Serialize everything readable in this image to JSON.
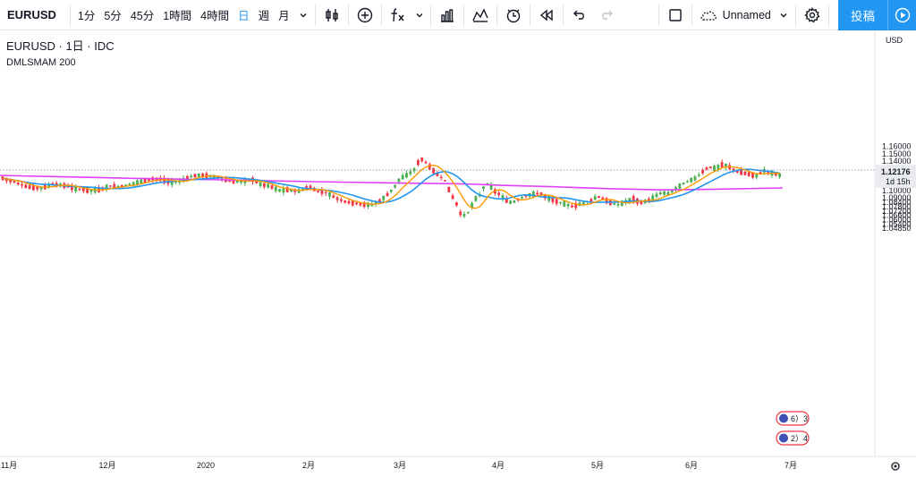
{
  "toolbar": {
    "symbol": "EURUSD",
    "intervals": [
      "1分",
      "5分",
      "45分",
      "1時間",
      "4時間",
      "日",
      "週",
      "月"
    ],
    "active_interval": "日",
    "layout_name": "Unnamed",
    "publish_label": "投稿",
    "accent_color": "#2196f3"
  },
  "legend": {
    "title": "EURUSD · 1日 · IDC",
    "indicator": "DMLSMAM 200"
  },
  "chart_data": {
    "type": "candlestick",
    "currency_label": "USD",
    "y_ticks": [
      "1.16000",
      "1.15000",
      "1.14000",
      "1.13000",
      "1.12176",
      "1.11000",
      "1.10000",
      "1.09000",
      "1.08400",
      "1.07800",
      "1.07200",
      "1.06600",
      "1.06000",
      "1.05400",
      "1.04850"
    ],
    "last_price": "1.12176",
    "countdown": "1d 15h",
    "x_labels": [
      "11月",
      "12月",
      "2020",
      "2月",
      "3月",
      "4月",
      "5月",
      "6月",
      "7月"
    ],
    "up_color": "#4caf50",
    "down_color": "#f23645",
    "ma_colors": {
      "fast": "#ff9800",
      "mid": "#2196f3",
      "slow": "#e040fb"
    },
    "event_badges": [
      "6）3",
      "2）4"
    ]
  }
}
